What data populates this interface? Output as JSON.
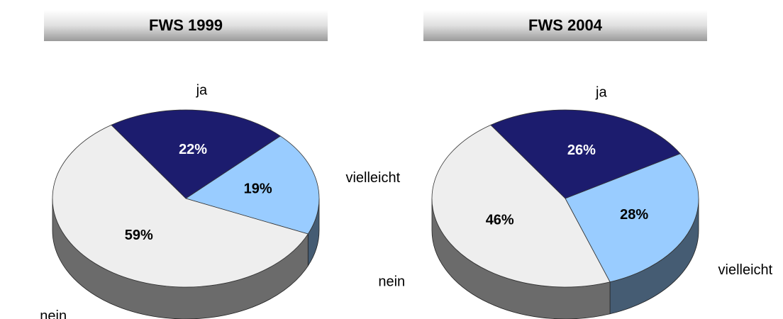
{
  "chart_data": [
    {
      "type": "pie",
      "title": "FWS 1999",
      "categories": [
        "ja",
        "vielleicht",
        "nein"
      ],
      "values": [
        22,
        19,
        59
      ],
      "value_labels": [
        "22%",
        "19%",
        "59%"
      ],
      "colors": [
        "#1c1c6e",
        "#99ccff",
        "#eeeeee"
      ]
    },
    {
      "type": "pie",
      "title": "FWS 2004",
      "categories": [
        "ja",
        "vielleicht",
        "nein"
      ],
      "values": [
        26,
        28,
        46
      ],
      "value_labels": [
        "26%",
        "28%",
        "46%"
      ],
      "colors": [
        "#1c1c6e",
        "#99ccff",
        "#eeeeee"
      ]
    }
  ]
}
